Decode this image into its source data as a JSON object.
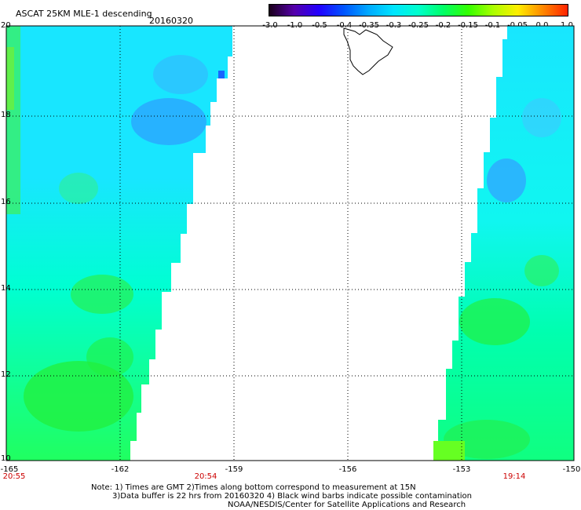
{
  "header": {
    "title": "ASCAT 25KM MLE-1 descending",
    "date": "20160320"
  },
  "colorbar": {
    "ticks": [
      "-3.0",
      "-1.0",
      "-0.5",
      "-0.4",
      "-0.35",
      "-0.3",
      "-0.25",
      "-0.2",
      "-0.15",
      "-0.1",
      "-0.05",
      "0.0",
      "1.0"
    ],
    "colors": [
      "#1a001a",
      "#5500aa",
      "#2200ff",
      "#0055ff",
      "#00aaff",
      "#00e5ff",
      "#00ffcc",
      "#00ff66",
      "#33ff00",
      "#aaff00",
      "#ffee00",
      "#ff8800",
      "#ff2200"
    ]
  },
  "axes": {
    "lat_labels": [
      "20",
      "18",
      "16",
      "14",
      "12",
      "10"
    ],
    "lon_labels": [
      "-165",
      "-162",
      "-159",
      "-156",
      "-153",
      "-150"
    ],
    "time_labels": [
      "20:55",
      "20:54",
      "19:14"
    ]
  },
  "notes": [
    "Note: 1) Times are GMT 2)Times along bottom correspond to measurement at 15N",
    "3)Data buffer is 22 hrs from 20160320 4) Black wind barbs indicate possible contamination",
    "NOAA/NESDIS/Center for Satellite Applications and Research"
  ],
  "colors": {
    "swath_cyan": "#00ffee",
    "swath_green": "#00ff55",
    "swath_blue": "#22aaff",
    "time_red": "#cc0000"
  }
}
